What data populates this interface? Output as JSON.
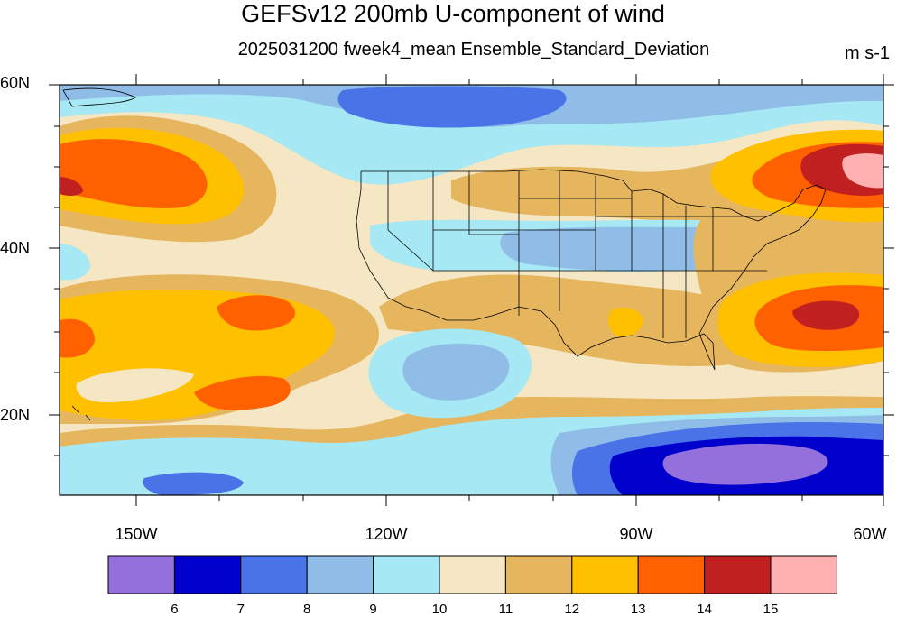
{
  "title": "GEFSv12 200mb U-component of wind",
  "subtitle": "2025031200 fweek4_mean Ensemble_Standard_Deviation",
  "units": "m s-1",
  "lat_labels": [
    "60N",
    "40N",
    "20N"
  ],
  "lon_labels": [
    "150W",
    "120W",
    "90W",
    "60W"
  ],
  "colorbar": {
    "labels": [
      "6",
      "7",
      "8",
      "9",
      "10",
      "11",
      "12",
      "13",
      "14",
      "15"
    ],
    "colors": [
      "#9370DB",
      "#0000CD",
      "#4A73E8",
      "#8FBDE8",
      "#A6E8F3",
      "#F5E6C4",
      "#E6B65E",
      "#FFC000",
      "#FF6000",
      "#C02020",
      "#FFB0B0"
    ]
  },
  "chart_data": {
    "type": "heatmap",
    "variable": "200mb U-component of wind ensemble standard deviation",
    "units": "m s-1",
    "xlim": [
      -160,
      -60
    ],
    "ylim": [
      10,
      60
    ],
    "levels": [
      6,
      7,
      8,
      9,
      10,
      11,
      12,
      13,
      14,
      15
    ],
    "regions": [
      {
        "lon": -155,
        "lat": 49,
        "value": 14.2
      },
      {
        "lon": -155,
        "lat": 30,
        "value": 13.6
      },
      {
        "lon": -136,
        "lat": 33,
        "value": 13.5
      },
      {
        "lon": -138,
        "lat": 23,
        "value": 13.4
      },
      {
        "lon": -66,
        "lat": 48,
        "value": 15.2
      },
      {
        "lon": -66,
        "lat": 33,
        "value": 14.5
      },
      {
        "lon": -100,
        "lat": 57,
        "value": 7.5
      },
      {
        "lon": -87,
        "lat": 39,
        "value": 9.5
      },
      {
        "lon": -112,
        "lat": 26,
        "value": 9.4
      },
      {
        "lon": -73,
        "lat": 14,
        "value": 6.3
      },
      {
        "lon": -85,
        "lat": 13,
        "value": 6.7
      },
      {
        "lon": -100,
        "lat": 47,
        "value": 11.6
      },
      {
        "lon": -107,
        "lat": 34,
        "value": 11.5
      }
    ]
  }
}
